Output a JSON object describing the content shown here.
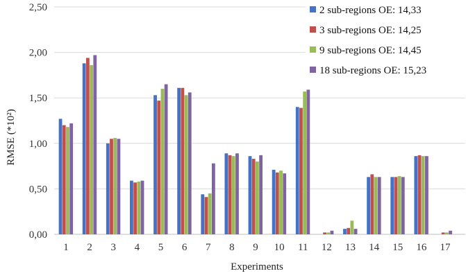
{
  "chart_data": {
    "type": "bar",
    "categories": [
      "1",
      "2",
      "3",
      "4",
      "5",
      "6",
      "7",
      "8",
      "9",
      "10",
      "11",
      "12",
      "13",
      "14",
      "15",
      "16",
      "17"
    ],
    "series": [
      {
        "name": "2 sub-regions OE: 14,33",
        "color": "#4472C4",
        "values": [
          1.27,
          1.88,
          1.0,
          0.59,
          1.53,
          1.61,
          0.44,
          0.89,
          0.86,
          0.71,
          1.4,
          0.0,
          0.06,
          0.63,
          0.63,
          0.86,
          0.0
        ]
      },
      {
        "name": "3 sub-regions OE: 14,25",
        "color": "#C0504D",
        "values": [
          1.2,
          1.94,
          1.05,
          0.57,
          1.47,
          1.61,
          0.41,
          0.87,
          0.83,
          0.68,
          1.39,
          0.02,
          0.07,
          0.66,
          0.63,
          0.87,
          0.02
        ]
      },
      {
        "name": "9 sub-regions OE: 14,45",
        "color": "#9BBB59",
        "values": [
          1.18,
          1.86,
          1.06,
          0.58,
          1.6,
          1.53,
          0.45,
          0.86,
          0.8,
          0.7,
          1.57,
          0.02,
          0.15,
          0.63,
          0.64,
          0.86,
          0.02
        ]
      },
      {
        "name": "18 sub-regions OE: 15,23",
        "color": "#8064A2",
        "values": [
          1.22,
          1.97,
          1.05,
          0.59,
          1.65,
          1.56,
          0.78,
          0.89,
          0.87,
          0.67,
          1.59,
          0.04,
          0.06,
          0.63,
          0.63,
          0.86,
          0.04
        ]
      }
    ],
    "y_ticks": [
      "0,00",
      "0,50",
      "1,00",
      "1,50",
      "2,00",
      "2,50"
    ],
    "ylim": [
      0,
      2.5
    ],
    "xlabel": "Experiments",
    "ylabel": "RMSE (*10²)",
    "grid": true,
    "legend_position": "top-right"
  }
}
